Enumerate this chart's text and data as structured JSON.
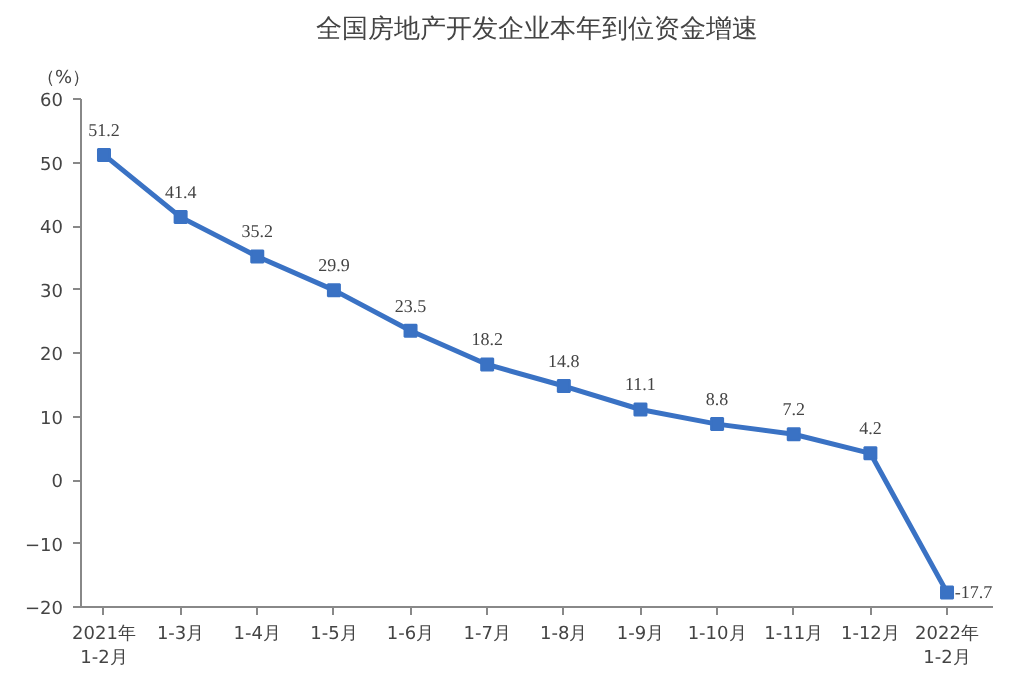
{
  "chart_data": {
    "type": "line",
    "title": "全国房地产开发企业本年到位资金增速",
    "ylabel": "（%）",
    "categories": [
      "2021年\n1-2月",
      "1-3月",
      "1-4月",
      "1-5月",
      "1-6月",
      "1-7月",
      "1-8月",
      "1-9月",
      "1-10月",
      "1-11月",
      "1-12月",
      "2022年\n1-2月"
    ],
    "series": [
      {
        "color": "#3a72c4",
        "values": [
          51.2,
          41.4,
          35.2,
          29.9,
          23.5,
          18.2,
          14.8,
          11.1,
          8.8,
          7.2,
          4.2,
          -17.7
        ]
      }
    ],
    "ylim": [
      -20,
      60
    ],
    "yticks": [
      -20,
      -10,
      0,
      10,
      20,
      30,
      40,
      50,
      60
    ],
    "data_labels": true,
    "grid": false,
    "marker": "square",
    "line_style": "solid"
  }
}
